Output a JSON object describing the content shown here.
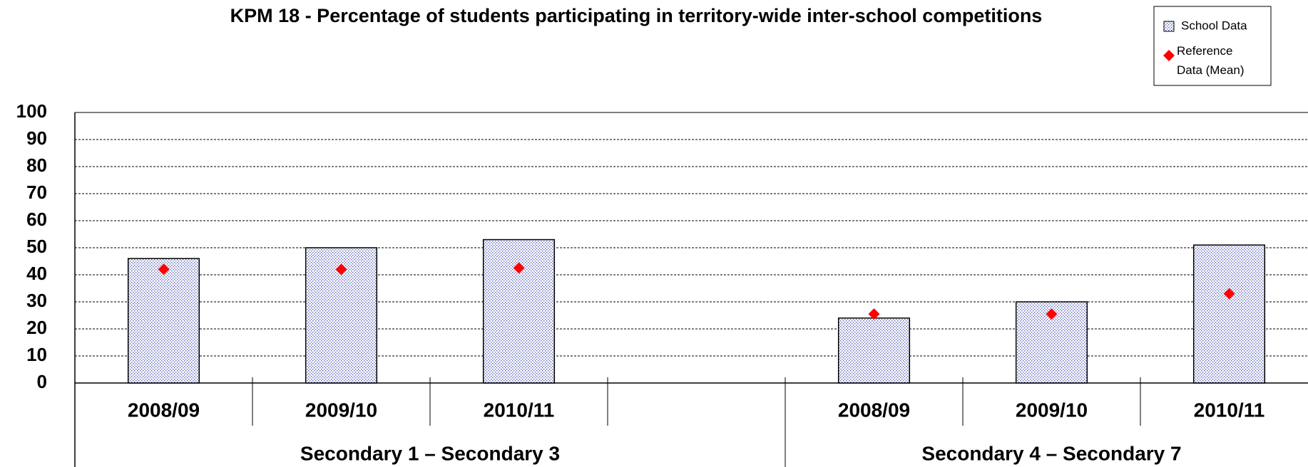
{
  "chart_data": {
    "type": "bar",
    "title": "KPM 18 - Percentage of students participating in territory-wide inter-school competitions",
    "categories": [
      "2008/09",
      "2009/10",
      "2010/11",
      null,
      "2008/09",
      "2009/10",
      "2010/11"
    ],
    "groups": [
      "Secondary 1 – Secondary 3",
      "Secondary 4 – Secondary 7"
    ],
    "series": [
      {
        "name": "School Data",
        "color": "#c8cce8",
        "values": [
          46,
          50,
          53,
          null,
          24,
          30,
          51
        ]
      },
      {
        "name": "Reference Data (Mean)",
        "color": "#ff0000",
        "values": [
          42,
          42,
          42.5,
          null,
          25.5,
          25.5,
          33
        ]
      }
    ],
    "ylim": [
      0,
      100
    ],
    "yticks": [
      0,
      10,
      20,
      30,
      40,
      50,
      60,
      70,
      80,
      90,
      100
    ],
    "grid": true
  }
}
